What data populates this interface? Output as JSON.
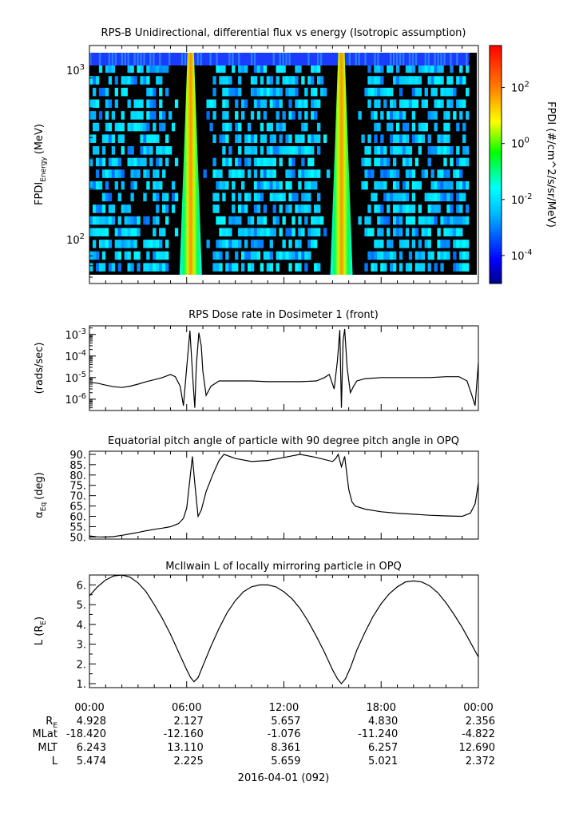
{
  "chart_data": [
    {
      "type": "heatmap",
      "title": "RPS-B  Unidirectional, differential flux vs energy (Isotropic assumption)",
      "ylabel_main": "FPDI",
      "ylabel_sub": "Energy",
      "ylabel_unit": "(MeV)",
      "yscale": "log",
      "ylim": [
        55,
        1400
      ],
      "yticks": [
        {
          "value": 100,
          "base": "10",
          "exp": "2"
        },
        {
          "value": 1000,
          "base": "10",
          "exp": "3"
        }
      ],
      "xlim_hours": [
        0,
        24
      ],
      "colorbar": {
        "label": "FPDI (#/cm^2/s/sr/MeV)",
        "scale": "log",
        "lim": [
          -5,
          3.5
        ],
        "ticks": [
          {
            "exp": -4,
            "base": "10",
            "sup": "-4"
          },
          {
            "exp": -2,
            "base": "10",
            "sup": "-2"
          },
          {
            "exp": 0,
            "base": "10",
            "sup": "0"
          },
          {
            "exp": 2,
            "base": "10",
            "sup": "2"
          }
        ],
        "colors": [
          "#00008b",
          "#0000ff",
          "#00bfff",
          "#00ffff",
          "#00ff00",
          "#ffff00",
          "#ff8000",
          "#ff0000"
        ]
      },
      "bright_bands_hours": [
        6.25,
        15.55
      ]
    },
    {
      "type": "line",
      "title": "RPS  Dose rate in Dosimeter 1 (front)",
      "ylabel": "(rads/sec)",
      "yscale": "log",
      "ylim": [
        3e-07,
        0.0025
      ],
      "yticks": [
        {
          "value": 1e-06,
          "base": "10",
          "sup": "-6"
        },
        {
          "value": 1e-05,
          "base": "10",
          "sup": "-5"
        },
        {
          "value": 0.0001,
          "base": "10",
          "sup": "-4"
        },
        {
          "value": 0.001,
          "base": "10",
          "sup": "-3"
        }
      ],
      "x": [
        0,
        0.5,
        1,
        1.5,
        2,
        2.5,
        3,
        3.5,
        4,
        4.5,
        5,
        5.3,
        5.6,
        5.8,
        6.0,
        6.2,
        6.4,
        6.5,
        6.6,
        6.75,
        6.9,
        7.0,
        7.2,
        7.5,
        8.0,
        9,
        10,
        11,
        12,
        13,
        14,
        14.5,
        14.8,
        15.1,
        15.3,
        15.45,
        15.55,
        15.65,
        15.75,
        15.9,
        16.1,
        16.3,
        16.5,
        17,
        18,
        19,
        20,
        21,
        22,
        22.8,
        23.3,
        23.6,
        23.8,
        24
      ],
      "values": [
        6e-06,
        5.5e-06,
        4.5e-06,
        3.8e-06,
        3.5e-06,
        4e-06,
        5e-06,
        6.5e-06,
        8e-06,
        1e-05,
        1.4e-05,
        1.1e-05,
        4e-06,
        5e-07,
        3e-05,
        0.0015,
        5e-06,
        4e-07,
        4e-05,
        0.0012,
        0.0003,
        2e-05,
        1.5e-06,
        4e-06,
        7e-06,
        7e-06,
        7e-06,
        6.5e-06,
        6.5e-06,
        6.5e-06,
        7e-06,
        1e-05,
        1.4e-05,
        3e-06,
        6e-05,
        0.0016,
        4e-07,
        0.0005,
        0.0018,
        3e-05,
        2e-06,
        4e-06,
        7e-06,
        9e-06,
        1e-05,
        1e-05,
        1e-05,
        1e-05,
        1.1e-05,
        1.1e-05,
        7e-06,
        1.5e-06,
        5e-07,
        5e-05
      ]
    },
    {
      "type": "line",
      "title": "Equatorial pitch angle of particle with 90 degree pitch angle in OPQ",
      "ylabel_main": "α",
      "ylabel_sub": "Eq",
      "ylabel_unit": "(deg)",
      "ylim": [
        49,
        91.5
      ],
      "yticks": [
        50,
        55,
        60,
        65,
        70,
        75,
        80,
        85,
        90
      ],
      "ytick_labels": [
        "50.",
        "55.",
        "60.",
        "65.",
        "70.",
        "75.",
        "80.",
        "85.",
        "90."
      ],
      "x": [
        0,
        0.5,
        1,
        1.5,
        2,
        2.5,
        3,
        3.5,
        4,
        4.5,
        5,
        5.5,
        5.8,
        6.0,
        6.2,
        6.35,
        6.5,
        6.7,
        6.9,
        7.2,
        7.6,
        8.0,
        8.3,
        9,
        10,
        11,
        12,
        13,
        14,
        15,
        15.2,
        15.35,
        15.55,
        15.75,
        16.0,
        16.2,
        16.4,
        17,
        18,
        19,
        20,
        21,
        22,
        23,
        23.5,
        23.8,
        24
      ],
      "values": [
        50.5,
        50.1,
        50,
        50.2,
        50.8,
        51.5,
        52.2,
        53,
        53.7,
        54.3,
        55,
        56.5,
        59,
        64,
        78,
        89,
        76,
        60,
        63,
        72,
        80,
        87,
        90,
        88,
        86.5,
        87,
        88.5,
        90,
        88.5,
        86.5,
        88,
        90,
        84,
        89,
        73,
        67,
        65,
        63.5,
        62.2,
        61.5,
        61,
        60.5,
        60.2,
        60,
        61.5,
        66,
        76
      ]
    },
    {
      "type": "line",
      "title": "McIlwain L of locally mirroring particle in OPQ",
      "ylabel_main": "L (R",
      "ylabel_sub": "E",
      "ylabel_unit": ")",
      "ylim": [
        0.8,
        6.5
      ],
      "yticks": [
        1,
        2,
        3,
        4,
        5,
        6
      ],
      "ytick_labels": [
        "1.",
        "2.",
        "3.",
        "4.",
        "5.",
        "6."
      ],
      "x": [
        0,
        0.5,
        1,
        1.5,
        2,
        2.5,
        3,
        3.5,
        4,
        4.5,
        5,
        5.5,
        6,
        6.25,
        6.45,
        6.7,
        7,
        7.5,
        8,
        8.5,
        9,
        9.5,
        10,
        10.5,
        11,
        11.5,
        12,
        12.5,
        13,
        13.5,
        14,
        14.5,
        15,
        15.3,
        15.55,
        15.8,
        16.1,
        16.5,
        17,
        17.5,
        18,
        18.5,
        19,
        19.5,
        20,
        20.5,
        21,
        21.5,
        22,
        22.5,
        23,
        23.5,
        24
      ],
      "values": [
        5.45,
        5.9,
        6.25,
        6.45,
        6.5,
        6.4,
        6.1,
        5.65,
        5.0,
        4.3,
        3.5,
        2.6,
        1.7,
        1.3,
        1.1,
        1.3,
        1.9,
        2.9,
        3.8,
        4.6,
        5.2,
        5.65,
        5.9,
        6.0,
        6.0,
        5.9,
        5.65,
        5.3,
        4.8,
        4.15,
        3.4,
        2.6,
        1.7,
        1.25,
        1.0,
        1.25,
        1.8,
        2.7,
        3.6,
        4.4,
        5.05,
        5.55,
        5.9,
        6.15,
        6.2,
        6.15,
        5.95,
        5.6,
        5.1,
        4.5,
        3.85,
        3.1,
        2.35
      ]
    }
  ],
  "time_axis": {
    "tick_labels": [
      "00:00",
      "06:00",
      "12:00",
      "18:00",
      "00:00"
    ],
    "date_label": "2016-04-01 (092)"
  },
  "ephemeris": {
    "row_labels": [
      {
        "main": "R",
        "sub": "E"
      },
      {
        "main": "MLat",
        "sub": ""
      },
      {
        "main": "MLT",
        "sub": ""
      },
      {
        "main": "L",
        "sub": ""
      }
    ],
    "rows": [
      [
        "4.928",
        "2.127",
        "5.657",
        "4.830",
        "2.356"
      ],
      [
        "-18.420",
        "-12.160",
        "-1.076",
        "-11.240",
        "-4.822"
      ],
      [
        "6.243",
        "13.110",
        "8.361",
        "6.257",
        "12.690"
      ],
      [
        "5.474",
        "2.225",
        "5.659",
        "5.021",
        "2.372"
      ]
    ]
  }
}
